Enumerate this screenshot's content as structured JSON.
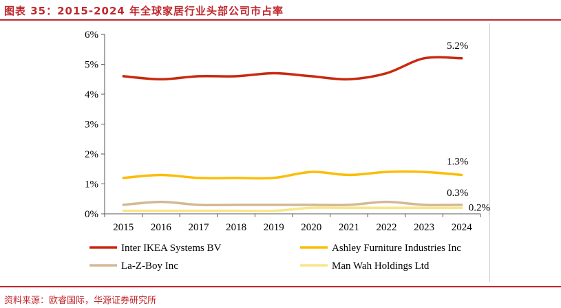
{
  "title": "图表 35：2015-2024 年全球家居行业头部公司市占率",
  "source": "资料来源：欧睿国际，华源证券研究所",
  "chart_data": {
    "type": "line",
    "categories": [
      "2015",
      "2016",
      "2017",
      "2018",
      "2019",
      "2020",
      "2021",
      "2022",
      "2023",
      "2024"
    ],
    "yticks": [
      "0%",
      "1%",
      "2%",
      "3%",
      "4%",
      "5%",
      "6%"
    ],
    "ylim": [
      0,
      6
    ],
    "grid": false,
    "legend": "bottom",
    "series": [
      {
        "name": "Inter IKEA Systems BV",
        "color": "#c8290f",
        "values": [
          4.6,
          4.5,
          4.6,
          4.6,
          4.7,
          4.6,
          4.5,
          4.7,
          5.2,
          5.2
        ],
        "end_label": "5.2%"
      },
      {
        "name": "Ashley Furniture Industries Inc",
        "color": "#fbbd07",
        "values": [
          1.2,
          1.3,
          1.2,
          1.2,
          1.2,
          1.4,
          1.3,
          1.4,
          1.4,
          1.3
        ],
        "end_label": "1.3%"
      },
      {
        "name": "La-Z-Boy Inc",
        "color": "#d4b895",
        "values": [
          0.3,
          0.4,
          0.3,
          0.3,
          0.3,
          0.3,
          0.3,
          0.4,
          0.3,
          0.3
        ],
        "end_label": "0.3%"
      },
      {
        "name": "Man Wah Holdings Ltd",
        "color": "#f8e68a",
        "values": [
          0.1,
          0.1,
          0.1,
          0.1,
          0.1,
          0.2,
          0.2,
          0.2,
          0.2,
          0.2
        ],
        "end_label": "0.2%"
      }
    ]
  }
}
